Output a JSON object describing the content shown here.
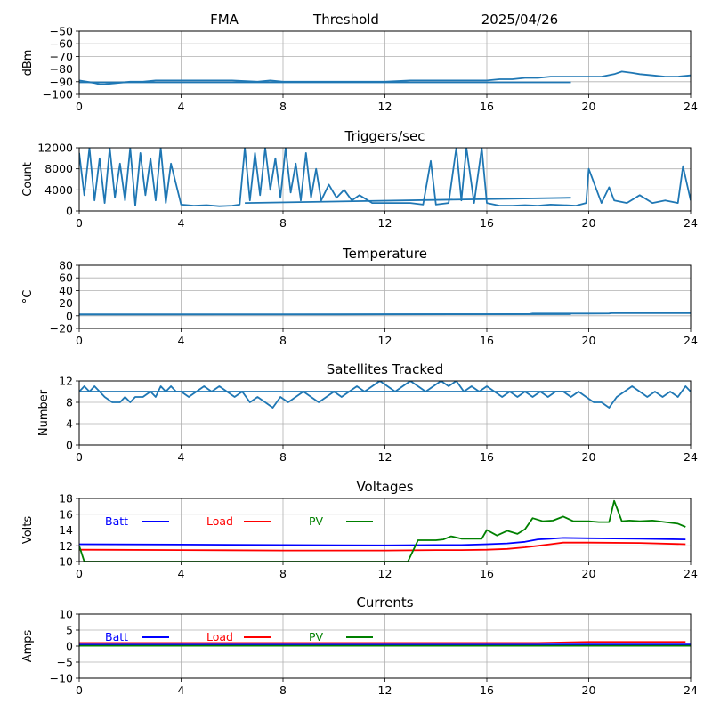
{
  "header": {
    "left": "FMA",
    "center": "Threshold",
    "right": "2025/04/26"
  },
  "colors": {
    "main": "#1f77b4",
    "batt": "#0000ff",
    "load": "#ff0000",
    "pv": "#008000",
    "grid": "#b0b0b0"
  },
  "chart_data": [
    {
      "type": "line",
      "title": "",
      "ylabel": "dBm",
      "xlim": [
        0,
        24
      ],
      "ylim": [
        -100,
        -50
      ],
      "xticks": [
        0,
        4,
        8,
        12,
        16,
        20,
        24
      ],
      "yticks": [
        -100,
        -90,
        -80,
        -70,
        -60,
        -50
      ],
      "grid": true,
      "series": [
        {
          "x": [
            0,
            0.3,
            0.6,
            0.8,
            1.0,
            1.5,
            2.0,
            2.5,
            3.0,
            3.5,
            4.0,
            5.0,
            6.0,
            7.0,
            7.5,
            8.0,
            9.0,
            10.0,
            11.0,
            12.0,
            13.0,
            14.0,
            14.5,
            15.0,
            15.5,
            16.0,
            16.5,
            17.0,
            17.5,
            18.0,
            18.5,
            19.0,
            19.5,
            20.0,
            20.5,
            21.0,
            21.3,
            21.7,
            22.0,
            22.5,
            23.0,
            23.5,
            24.0
          ],
          "y": [
            -89,
            -90,
            -91,
            -92,
            -92,
            -91,
            -90,
            -90,
            -89,
            -89,
            -89,
            -89,
            -89,
            -90,
            -89,
            -90,
            -90,
            -90,
            -90,
            -90,
            -89,
            -89,
            -89,
            -89,
            -89,
            -89,
            -88,
            -88,
            -87,
            -87,
            -86,
            -86,
            -86,
            -86,
            -86,
            -84,
            -82,
            -83,
            -84,
            -85,
            -86,
            -86,
            -85
          ]
        },
        {
          "x": [
            0,
            19.3
          ],
          "y": [
            -90.5,
            -90.5
          ]
        }
      ]
    },
    {
      "type": "line",
      "title": "Triggers/sec",
      "ylabel": "Count",
      "xlim": [
        0,
        24
      ],
      "ylim": [
        0,
        12000
      ],
      "xticks": [
        0,
        4,
        8,
        12,
        16,
        20,
        24
      ],
      "yticks": [
        0,
        4000,
        8000,
        12000
      ],
      "grid": true,
      "series": [
        {
          "x": [
            0,
            0.2,
            0.4,
            0.6,
            0.8,
            1.0,
            1.2,
            1.4,
            1.6,
            1.8,
            2.0,
            2.2,
            2.4,
            2.6,
            2.8,
            3.0,
            3.2,
            3.4,
            3.6,
            4.0,
            4.5,
            5.0,
            5.5,
            6.0,
            6.3,
            6.5,
            6.7,
            6.9,
            7.1,
            7.3,
            7.5,
            7.7,
            7.9,
            8.1,
            8.3,
            8.5,
            8.7,
            8.9,
            9.1,
            9.3,
            9.5,
            9.8,
            10.1,
            10.4,
            10.7,
            11.0,
            11.5,
            12.0,
            12.5,
            13.0,
            13.5,
            13.8,
            14.0,
            14.5,
            14.8,
            15.0,
            15.2,
            15.5,
            15.8,
            16.0,
            16.5,
            17.0,
            17.5,
            18.0,
            18.5,
            19.0,
            19.5,
            19.9,
            20.0,
            20.5,
            20.8,
            21.0,
            21.5,
            22.0,
            22.5,
            23.0,
            23.5,
            23.7,
            24.0
          ],
          "y": [
            11000,
            3000,
            12000,
            2000,
            10000,
            1500,
            12000,
            2500,
            9000,
            2000,
            12000,
            1000,
            11000,
            3000,
            10000,
            2000,
            12000,
            1500,
            9000,
            1200,
            1000,
            1100,
            900,
            1000,
            1200,
            12000,
            2000,
            11000,
            3000,
            12000,
            4000,
            10000,
            2500,
            12000,
            3500,
            9000,
            2000,
            11000,
            2500,
            8000,
            2000,
            5000,
            2500,
            4000,
            2000,
            3000,
            1500,
            1500,
            1500,
            1500,
            1200,
            9500,
            1200,
            1500,
            12000,
            2000,
            12000,
            1500,
            12000,
            1500,
            1000,
            1000,
            1100,
            1000,
            1200,
            1100,
            1000,
            1500,
            8000,
            1500,
            4500,
            2000,
            1500,
            3000,
            1500,
            2000,
            1500,
            8500,
            2000
          ]
        },
        {
          "x": [
            6.5,
            19.3
          ],
          "y": [
            1500,
            2500
          ]
        }
      ]
    },
    {
      "type": "line",
      "title": "Temperature",
      "ylabel": "°C",
      "xlim": [
        0,
        24
      ],
      "ylim": [
        -20,
        80
      ],
      "xticks": [
        0,
        4,
        8,
        12,
        16,
        20,
        24
      ],
      "yticks": [
        -20,
        0,
        20,
        40,
        60,
        80
      ],
      "grid": true,
      "series": [
        {
          "x": [
            0,
            4,
            8,
            12,
            16,
            17.7,
            17.8,
            20,
            20.8,
            20.9,
            24
          ],
          "y": [
            2,
            2,
            2,
            2.3,
            2.6,
            2.8,
            3.5,
            3.5,
            3.6,
            4.2,
            4.2
          ]
        },
        {
          "x": [
            0,
            19.3
          ],
          "y": [
            2.2,
            2.5
          ]
        }
      ]
    },
    {
      "type": "line",
      "title": "Satellites Tracked",
      "ylabel": "Number",
      "xlim": [
        0,
        24
      ],
      "ylim": [
        0,
        12
      ],
      "xticks": [
        0,
        4,
        8,
        12,
        16,
        20,
        24
      ],
      "yticks": [
        0,
        4,
        8,
        12
      ],
      "grid": true,
      "series": [
        {
          "x": [
            0,
            0.2,
            0.4,
            0.6,
            0.8,
            1.0,
            1.3,
            1.6,
            1.8,
            2.0,
            2.2,
            2.5,
            2.8,
            3.0,
            3.2,
            3.4,
            3.6,
            3.8,
            4.0,
            4.3,
            4.6,
            4.9,
            5.2,
            5.5,
            5.8,
            6.1,
            6.4,
            6.7,
            7.0,
            7.3,
            7.6,
            7.9,
            8.2,
            8.5,
            8.8,
            9.1,
            9.4,
            9.7,
            10.0,
            10.3,
            10.6,
            10.9,
            11.2,
            11.5,
            11.8,
            12.1,
            12.4,
            12.7,
            13.0,
            13.3,
            13.6,
            13.9,
            14.2,
            14.5,
            14.8,
            15.1,
            15.4,
            15.7,
            16.0,
            16.3,
            16.6,
            16.9,
            17.2,
            17.5,
            17.8,
            18.1,
            18.4,
            18.7,
            19.0,
            19.3,
            19.6,
            19.9,
            20.2,
            20.5,
            20.8,
            21.1,
            21.4,
            21.7,
            22.0,
            22.3,
            22.6,
            22.9,
            23.2,
            23.5,
            23.8,
            24.0
          ],
          "y": [
            10,
            11,
            10,
            11,
            10,
            9,
            8,
            8,
            9,
            8,
            9,
            9,
            10,
            9,
            11,
            10,
            11,
            10,
            10,
            9,
            10,
            11,
            10,
            11,
            10,
            9,
            10,
            8,
            9,
            8,
            7,
            9,
            8,
            9,
            10,
            9,
            8,
            9,
            10,
            9,
            10,
            11,
            10,
            11,
            12,
            11,
            10,
            11,
            12,
            11,
            10,
            11,
            12,
            11,
            12,
            10,
            11,
            10,
            11,
            10,
            9,
            10,
            9,
            10,
            9,
            10,
            9,
            10,
            10,
            9,
            10,
            9,
            8,
            8,
            7,
            9,
            10,
            11,
            10,
            9,
            10,
            9,
            10,
            9,
            11,
            10
          ]
        },
        {
          "x": [
            0,
            19.3
          ],
          "y": [
            10,
            10
          ]
        }
      ]
    },
    {
      "type": "line",
      "title": "Voltages",
      "ylabel": "Volts",
      "xlim": [
        0,
        24
      ],
      "ylim": [
        10,
        18
      ],
      "xticks": [
        0,
        4,
        8,
        12,
        16,
        20,
        24
      ],
      "yticks": [
        10,
        12,
        14,
        16,
        18
      ],
      "grid": true,
      "legend": "inside-top",
      "series": [
        {
          "name": "Batt",
          "color": "#0000ff",
          "x": [
            0,
            4,
            8,
            12,
            14,
            15,
            16,
            16.8,
            17.5,
            18,
            18.5,
            19,
            20,
            22,
            23.8
          ],
          "y": [
            12.2,
            12.15,
            12.1,
            12.05,
            12.1,
            12.1,
            12.2,
            12.3,
            12.5,
            12.8,
            12.9,
            13.0,
            12.95,
            12.9,
            12.8
          ]
        },
        {
          "name": "Load",
          "color": "#ff0000",
          "x": [
            0,
            4,
            8,
            12,
            14,
            15,
            16,
            16.8,
            17.5,
            18,
            18.5,
            19,
            20,
            22,
            23.8
          ],
          "y": [
            11.5,
            11.45,
            11.4,
            11.4,
            11.45,
            11.45,
            11.5,
            11.6,
            11.8,
            12.0,
            12.2,
            12.4,
            12.4,
            12.35,
            12.2
          ]
        },
        {
          "name": "PV",
          "color": "#008000",
          "x": [
            0,
            0.2,
            12.9,
            13.3,
            14.0,
            14.3,
            14.6,
            15.0,
            15.4,
            15.8,
            16.0,
            16.4,
            16.8,
            17.2,
            17.5,
            17.8,
            18.2,
            18.6,
            19.0,
            19.4,
            20.0,
            20.4,
            20.8,
            21.0,
            21.3,
            21.6,
            22.0,
            22.5,
            23.0,
            23.5,
            23.8
          ],
          "y": [
            12,
            10,
            10,
            12.7,
            12.7,
            12.8,
            13.2,
            12.9,
            12.9,
            12.9,
            14.0,
            13.3,
            13.9,
            13.5,
            14.1,
            15.5,
            15.1,
            15.2,
            15.7,
            15.1,
            15.1,
            15.0,
            15.0,
            17.7,
            15.1,
            15.2,
            15.1,
            15.2,
            15.0,
            14.8,
            14.4
          ]
        }
      ]
    },
    {
      "type": "line",
      "title": "Currents",
      "ylabel": "Amps",
      "xlim": [
        0,
        24
      ],
      "ylim": [
        -10,
        10
      ],
      "xticks": [
        0,
        4,
        8,
        12,
        16,
        20,
        24
      ],
      "yticks": [
        -10,
        -5,
        0,
        5,
        10
      ],
      "grid": true,
      "legend": "inside-top",
      "series": [
        {
          "name": "Batt",
          "color": "#0000ff",
          "x": [
            0,
            24
          ],
          "y": [
            0.5,
            0.5
          ]
        },
        {
          "name": "Load",
          "color": "#ff0000",
          "x": [
            0,
            18,
            20,
            23.8
          ],
          "y": [
            1.0,
            1.0,
            1.3,
            1.3
          ]
        },
        {
          "name": "PV",
          "color": "#008000",
          "x": [
            0,
            24
          ],
          "y": [
            0.1,
            0.1
          ]
        }
      ]
    }
  ]
}
